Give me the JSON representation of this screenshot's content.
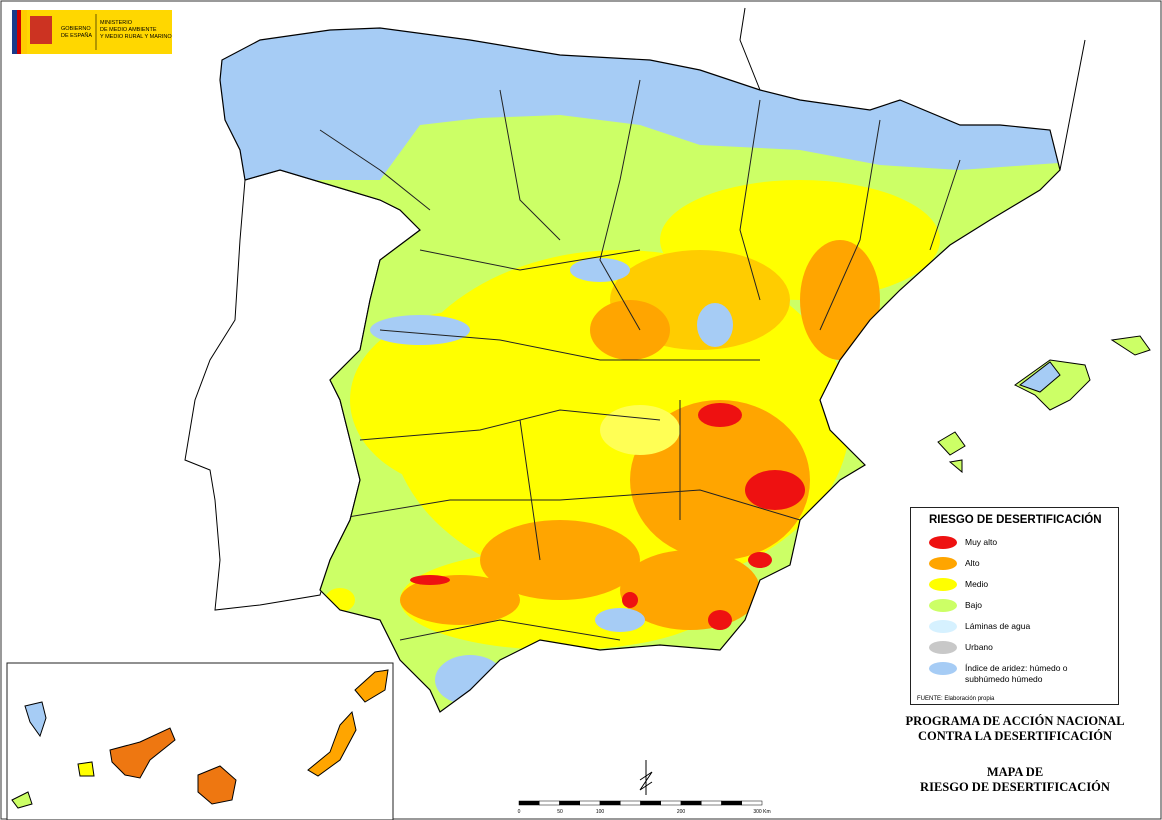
{
  "header": {
    "gobierno": [
      "GOBIERNO",
      "DE ESPAÑA"
    ],
    "ministerio": [
      "MINISTERIO",
      "DE MEDIO AMBIENTE",
      "Y MEDIO RURAL Y MARINO"
    ]
  },
  "legend": {
    "title": "RIESGO DE DESERTIFICACIÓN",
    "items": [
      {
        "label": "Muy alto",
        "color": "#ee1111"
      },
      {
        "label": "Alto",
        "color": "#ffa500"
      },
      {
        "label": "Medio",
        "color": "#ffff00"
      },
      {
        "label": "Bajo",
        "color": "#ccff66"
      },
      {
        "label": "Láminas de agua",
        "color": "#d6f1ff"
      },
      {
        "label": "Urbano",
        "color": "#c8c8c8"
      },
      {
        "label": "Índice de aridez: húmedo o subhúmedo húmedo",
        "color": "#a6ccf5"
      }
    ],
    "source": "FUENTE: Elaboración propia"
  },
  "program": [
    "PROGRAMA DE ACCIÓN NACIONAL",
    "CONTRA LA DESERTIFICACIÓN"
  ],
  "map_title": [
    "MAPA DE",
    "RIESGO DE DESERTIFICACIÓN"
  ],
  "scale": [
    "0",
    "50",
    "100",
    "200",
    "300 Km"
  ]
}
